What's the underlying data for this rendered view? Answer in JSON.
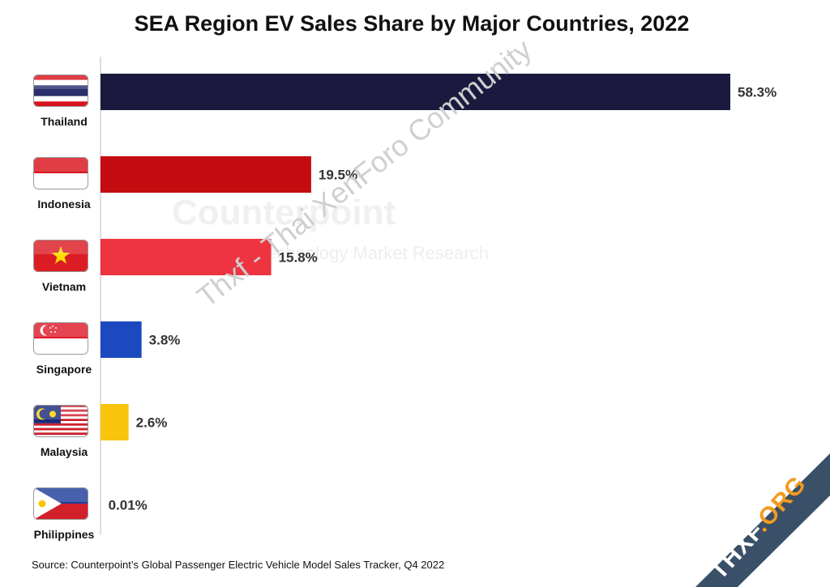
{
  "chart_data": {
    "type": "bar",
    "orientation": "horizontal",
    "title": "SEA Region EV Sales Share by Major Countries, 2022",
    "categories": [
      "Thailand",
      "Indonesia",
      "Vietnam",
      "Singapore",
      "Malaysia",
      "Philippines"
    ],
    "values": [
      58.3,
      19.5,
      15.8,
      3.8,
      2.6,
      0.01
    ],
    "value_labels": [
      "58.3%",
      "19.5%",
      "15.8%",
      "3.8%",
      "2.6%",
      "0.01%"
    ],
    "bar_colors": [
      "#1b1a3e",
      "#c40c10",
      "#ee3440",
      "#1c49bf",
      "#f9c40c",
      "#c8c8c8"
    ],
    "unit": "%",
    "grid": false,
    "legend": "none",
    "source": "Source: Counterpoint’s Global Passenger Electric Vehicle Model Sales Tracker, Q4 2022"
  },
  "watermarks": {
    "logo": "Counterpoint",
    "logo_sub": "Technology Market Research",
    "diagonal": "Thxf - Thai XenForo Community",
    "corner_main": "THXF",
    "corner_accent": ".ORG"
  },
  "icons": [
    "thailand-flag-icon",
    "indonesia-flag-icon",
    "vietnam-flag-icon",
    "singapore-flag-icon",
    "malaysia-flag-icon",
    "philippines-flag-icon"
  ]
}
